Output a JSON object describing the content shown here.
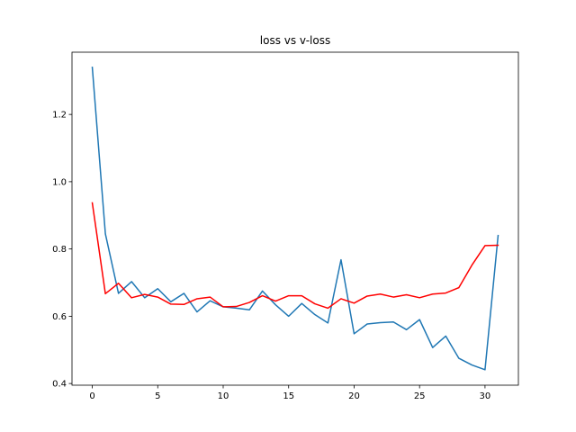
{
  "chart_data": {
    "type": "line",
    "title": "loss vs v-loss",
    "xlabel": "",
    "ylabel": "",
    "xlim": [
      -1.55,
      32.55
    ],
    "ylim": [
      0.395,
      1.385
    ],
    "xticks": [
      0,
      5,
      10,
      15,
      20,
      25,
      30
    ],
    "yticks": [
      0.4,
      0.6,
      0.8,
      1.0,
      1.2
    ],
    "ytick_labels": [
      "0.4",
      "0.6",
      "0.8",
      "1.0",
      "1.2"
    ],
    "grid": false,
    "x": [
      0,
      1,
      2,
      3,
      4,
      5,
      6,
      7,
      8,
      9,
      10,
      11,
      12,
      13,
      14,
      15,
      16,
      17,
      18,
      19,
      20,
      21,
      22,
      23,
      24,
      25,
      26,
      27,
      28,
      29,
      30,
      31
    ],
    "series": [
      {
        "color": "#1f77b4",
        "values": [
          1.34,
          0.845,
          0.668,
          0.703,
          0.655,
          0.682,
          0.643,
          0.668,
          0.613,
          0.646,
          0.628,
          0.624,
          0.619,
          0.675,
          0.634,
          0.6,
          0.638,
          0.605,
          0.58,
          0.768,
          0.548,
          0.577,
          0.581,
          0.583,
          0.56,
          0.59,
          0.507,
          0.541,
          0.475,
          0.455,
          0.441,
          0.84
        ]
      },
      {
        "color": "#ff0000",
        "values": [
          0.937,
          0.667,
          0.698,
          0.655,
          0.665,
          0.657,
          0.636,
          0.635,
          0.652,
          0.657,
          0.628,
          0.629,
          0.641,
          0.661,
          0.645,
          0.661,
          0.661,
          0.637,
          0.624,
          0.652,
          0.639,
          0.66,
          0.666,
          0.657,
          0.664,
          0.655,
          0.666,
          0.669,
          0.685,
          0.752,
          0.81,
          0.811
        ]
      }
    ]
  }
}
